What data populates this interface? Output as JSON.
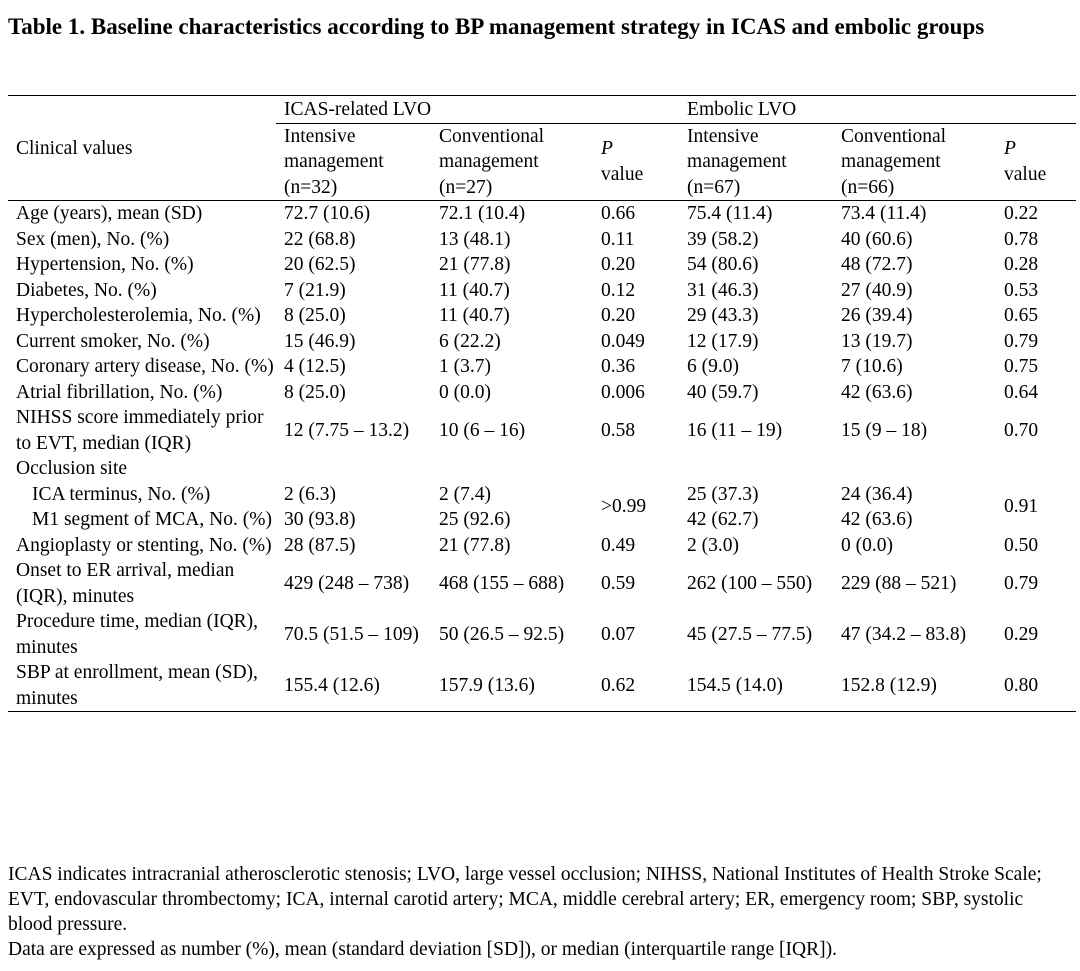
{
  "title": "Table 1. Baseline characteristics according to BP management strategy in ICAS and embolic groups",
  "header": {
    "clinical_values": "Clinical values",
    "group_icas": "ICAS-related LVO",
    "group_embolic": "Embolic LVO",
    "icas_intensive": "Intensive management (n=32)",
    "icas_conventional": "Conventional management (n=27)",
    "p_value": "P",
    "p_value_word": "value",
    "emb_intensive": "Intensive management (n=67)",
    "emb_conventional": "Conventional management (n=66)"
  },
  "rows": [
    {
      "label": "Age (years), mean (SD)",
      "icas_int": "72.7 (10.6)",
      "icas_conv": "72.1 (10.4)",
      "icas_p": "0.66",
      "emb_int": "75.4 (11.4)",
      "emb_conv": "73.4 (11.4)",
      "emb_p": "0.22"
    },
    {
      "label": "Sex (men), No. (%)",
      "icas_int": "22 (68.8)",
      "icas_conv": "13 (48.1)",
      "icas_p": "0.11",
      "emb_int": "39 (58.2)",
      "emb_conv": "40 (60.6)",
      "emb_p": "0.78"
    },
    {
      "label": "Hypertension, No. (%)",
      "icas_int": "20 (62.5)",
      "icas_conv": "21 (77.8)",
      "icas_p": "0.20",
      "emb_int": "54 (80.6)",
      "emb_conv": "48 (72.7)",
      "emb_p": "0.28"
    },
    {
      "label": "Diabetes, No. (%)",
      "icas_int": "7 (21.9)",
      "icas_conv": "11 (40.7)",
      "icas_p": "0.12",
      "emb_int": "31 (46.3)",
      "emb_conv": "27 (40.9)",
      "emb_p": "0.53"
    },
    {
      "label": "Hypercholesterolemia, No. (%)",
      "icas_int": "8 (25.0)",
      "icas_conv": "11 (40.7)",
      "icas_p": "0.20",
      "emb_int": "29 (43.3)",
      "emb_conv": "26 (39.4)",
      "emb_p": "0.65"
    },
    {
      "label": "Current smoker, No. (%)",
      "icas_int": "15 (46.9)",
      "icas_conv": "6 (22.2)",
      "icas_p": "0.049",
      "emb_int": "12 (17.9)",
      "emb_conv": "13 (19.7)",
      "emb_p": "0.79"
    },
    {
      "label": "Coronary artery disease, No. (%)",
      "icas_int": "4 (12.5)",
      "icas_conv": "1 (3.7)",
      "icas_p": "0.36",
      "emb_int": "6 (9.0)",
      "emb_conv": "7 (10.6)",
      "emb_p": "0.75"
    },
    {
      "label": "Atrial fibrillation, No. (%)",
      "icas_int": "8 (25.0)",
      "icas_conv": "0 (0.0)",
      "icas_p": "0.006",
      "emb_int": "40 (59.7)",
      "emb_conv": "42 (63.6)",
      "emb_p": "0.64"
    },
    {
      "label": "NIHSS score immediately prior to EVT, median (IQR)",
      "icas_int": "12 (7.75 – 13.2)",
      "icas_conv": "10 (6 – 16)",
      "icas_p": "0.58",
      "emb_int": "16 (11 – 19)",
      "emb_conv": "15 (9 – 18)",
      "emb_p": "0.70"
    }
  ],
  "occlusion": {
    "label": "Occlusion site",
    "icas_p": ">0.99",
    "emb_p": "0.91",
    "sub": [
      {
        "label": "ICA terminus, No. (%)",
        "icas_int": "2 (6.3)",
        "icas_conv": "2 (7.4)",
        "emb_int": "25 (37.3)",
        "emb_conv": "24 (36.4)"
      },
      {
        "label": "M1 segment of MCA, No. (%)",
        "icas_int": "30 (93.8)",
        "icas_conv": "25 (92.6)",
        "emb_int": "42 (62.7)",
        "emb_conv": "42 (63.6)"
      }
    ]
  },
  "rows2": [
    {
      "label": "Angioplasty or stenting, No. (%)",
      "icas_int": "28 (87.5)",
      "icas_conv": "21 (77.8)",
      "icas_p": "0.49",
      "emb_int": "2 (3.0)",
      "emb_conv": "0 (0.0)",
      "emb_p": "0.50"
    },
    {
      "label": "Onset to ER arrival, median (IQR), minutes",
      "icas_int": "429 (248 – 738)",
      "icas_conv": "468 (155 – 688)",
      "icas_p": "0.59",
      "emb_int": "262 (100 – 550)",
      "emb_conv": "229 (88 – 521)",
      "emb_p": "0.79"
    },
    {
      "label": "Procedure time, median (IQR), minutes",
      "icas_int": "70.5 (51.5 – 109)",
      "icas_conv": "50 (26.5 – 92.5)",
      "icas_p": "0.07",
      "emb_int": "45 (27.5 – 77.5)",
      "emb_conv": "47 (34.2 – 83.8)",
      "emb_p": "0.29"
    },
    {
      "label": "SBP at enrollment, mean (SD), minutes",
      "icas_int": "155.4 (12.6)",
      "icas_conv": "157.9 (13.6)",
      "icas_p": "0.62",
      "emb_int": "154.5 (14.0)",
      "emb_conv": "152.8 (12.9)",
      "emb_p": "0.80"
    }
  ],
  "footnotes": [
    "ICAS indicates intracranial atherosclerotic stenosis; LVO, large vessel occlusion; NIHSS, National Institutes of Health Stroke Scale; EVT, endovascular thrombectomy; ICA, internal carotid artery; MCA, middle cerebral artery; ER, emergency room; SBP, systolic blood pressure.",
    "Data are expressed as number (%), mean (standard deviation [SD]), or median (interquartile range [IQR])."
  ]
}
